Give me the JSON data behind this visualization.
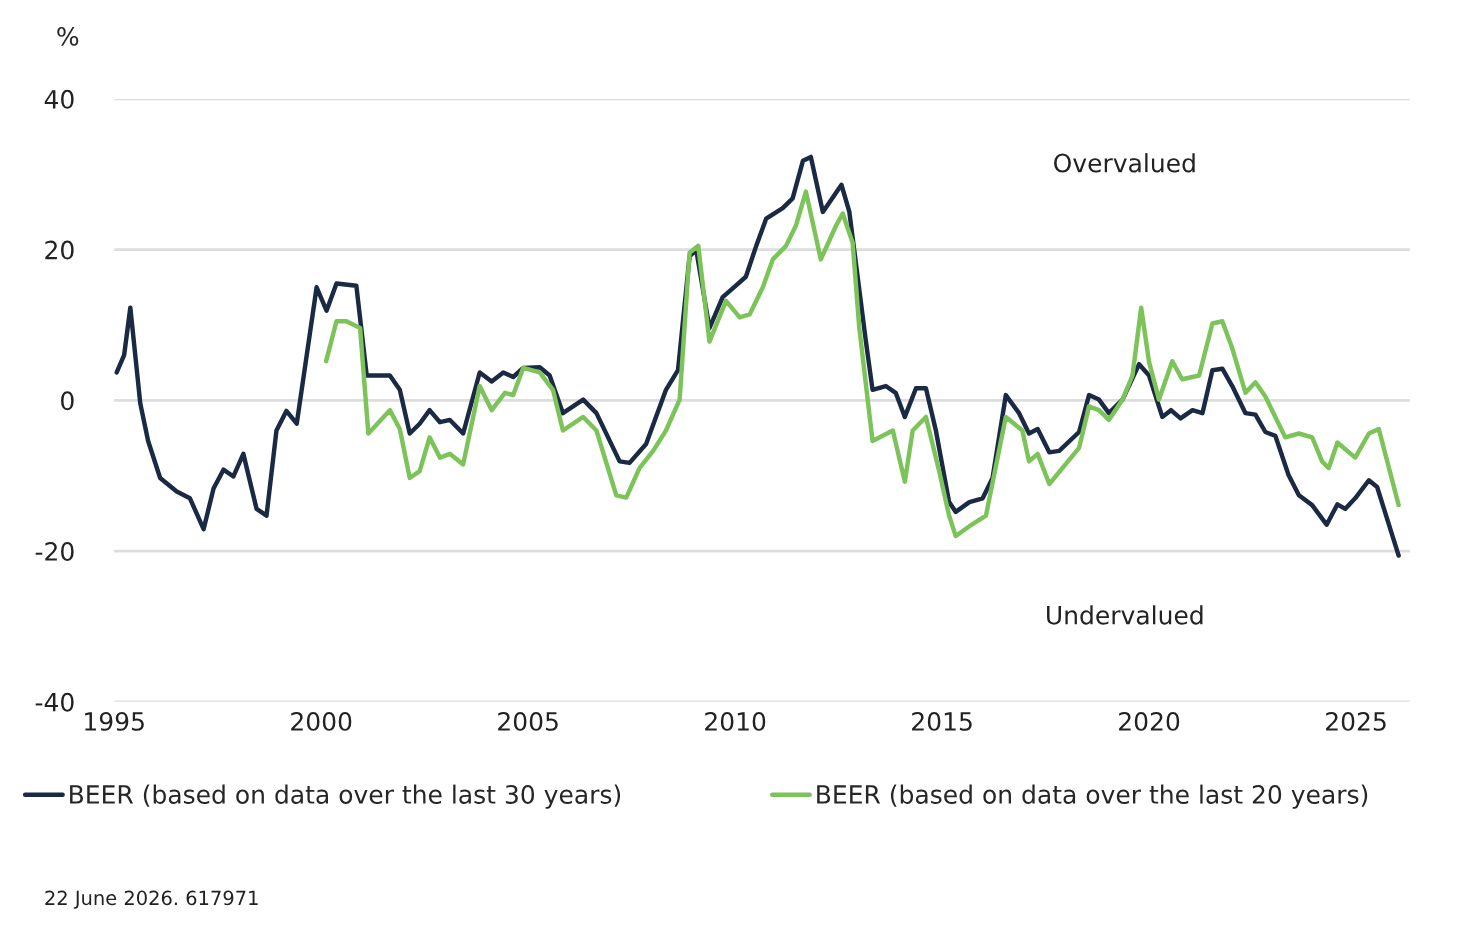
{
  "chart_data": {
    "type": "line",
    "ylabel": "%",
    "xlim": [
      1995,
      2026.3
    ],
    "xticks": [
      1995,
      2000,
      2005,
      2010,
      2015,
      2020,
      2025
    ],
    "ylim": [
      -40,
      40
    ],
    "yticks": [
      -40,
      -20,
      0,
      20,
      40
    ],
    "grid": "y",
    "legend": "bottom",
    "marker": "none",
    "line_style": "solid",
    "annotations": [
      "Overvalued",
      "Undervalued",
      "22 June 2026. 617971"
    ],
    "series": [
      {
        "name": "BEER (based on data over the last 30 years)",
        "color": "#1b2a44",
        "x": [
          1995.06,
          1995.24,
          1995.39,
          1995.63,
          1995.82,
          1996.11,
          1996.51,
          1996.83,
          1997.16,
          1997.4,
          1997.64,
          1997.88,
          1998.12,
          1998.44,
          1998.68,
          1998.92,
          1999.16,
          1999.41,
          1999.89,
          2000.13,
          2000.37,
          2000.85,
          2001.1,
          2001.66,
          2001.9,
          2002.14,
          2002.38,
          2002.62,
          2002.87,
          2003.11,
          2003.43,
          2003.83,
          2004.12,
          2004.4,
          2004.64,
          2004.88,
          2005.28,
          2005.52,
          2005.84,
          2006.33,
          2006.65,
          2007.21,
          2007.45,
          2007.85,
          2008.33,
          2008.62,
          2008.9,
          2009.06,
          2009.38,
          2009.7,
          2009.95,
          2010.26,
          2010.51,
          2010.75,
          2011.15,
          2011.39,
          2011.64,
          2011.83,
          2012.12,
          2012.57,
          2012.76,
          2013.16,
          2013.32,
          2013.64,
          2013.88,
          2014.1,
          2014.37,
          2014.61,
          2014.85,
          2015.17,
          2015.33,
          2015.66,
          2015.98,
          2016.22,
          2016.54,
          2016.86,
          2017.1,
          2017.31,
          2017.59,
          2017.83,
          2018.31,
          2018.55,
          2018.79,
          2019.03,
          2019.36,
          2019.76,
          2020.0,
          2020.32,
          2020.53,
          2020.76,
          2021.05,
          2021.29,
          2021.53,
          2021.77,
          2022.01,
          2022.33,
          2022.57,
          2022.81,
          2023.05,
          2023.37,
          2023.62,
          2023.94,
          2024.29,
          2024.55,
          2024.74,
          2024.98,
          2025.31,
          2025.51,
          2026.03
        ],
        "values": [
          3.7,
          6,
          12.3,
          -0.4,
          -5.4,
          -10.3,
          -12.1,
          -13,
          -17.1,
          -11.7,
          -9.2,
          -10.1,
          -7.1,
          -14.4,
          -15.3,
          -4,
          -1.4,
          -3.1,
          15,
          11.9,
          15.5,
          15.2,
          3.3,
          3.3,
          1.4,
          -4.4,
          -3.1,
          -1.3,
          -2.9,
          -2.6,
          -4.4,
          3.7,
          2.5,
          3.7,
          3.1,
          4.3,
          4.4,
          3.3,
          -1.7,
          0.1,
          -1.7,
          -8.1,
          -8.3,
          -5.8,
          1.4,
          4,
          19.1,
          20,
          9.6,
          13.7,
          14.9,
          16.4,
          20.5,
          24.1,
          25.5,
          26.8,
          31.8,
          32.3,
          25,
          28.6,
          25,
          7.8,
          1.4,
          1.9,
          1,
          -2.2,
          1.6,
          1.6,
          -4,
          -13.5,
          -14.8,
          -13.5,
          -13,
          -10.3,
          0.7,
          -1.7,
          -4.4,
          -3.8,
          -6.9,
          -6.7,
          -4.2,
          0.7,
          0.1,
          -1.7,
          0.1,
          4.8,
          3.3,
          -2.2,
          -1.3,
          -2.4,
          -1.3,
          -1.7,
          4,
          4.2,
          1.9,
          -1.7,
          -1.9,
          -4.2,
          -4.7,
          -9.9,
          -12.6,
          -13.9,
          -16.5,
          -13.8,
          -14.4,
          -13,
          -10.6,
          -11.5,
          -20.6
        ]
      },
      {
        "name": "BEER (based on data over the last 20 years)",
        "color": "#7cc35a",
        "x": [
          2000.12,
          2000.37,
          2000.61,
          2000.94,
          2001.14,
          2001.66,
          2001.9,
          2002.14,
          2002.38,
          2002.62,
          2002.87,
          2003.11,
          2003.43,
          2003.83,
          2004.12,
          2004.44,
          2004.64,
          2004.88,
          2005.28,
          2005.6,
          2005.84,
          2006.33,
          2006.65,
          2007.13,
          2007.37,
          2007.69,
          2008.02,
          2008.33,
          2008.66,
          2008.9,
          2009.11,
          2009.38,
          2009.78,
          2010.11,
          2010.35,
          2010.67,
          2010.91,
          2011.23,
          2011.47,
          2011.71,
          2012.07,
          2012.44,
          2012.6,
          2012.84,
          2013.0,
          2013.32,
          2013.81,
          2014.1,
          2014.29,
          2014.61,
          2014.93,
          2015.17,
          2015.33,
          2015.66,
          2016.06,
          2016.54,
          2016.94,
          2017.1,
          2017.31,
          2017.59,
          2018.31,
          2018.55,
          2018.79,
          2019.03,
          2019.36,
          2019.6,
          2019.81,
          2020.0,
          2020.24,
          2020.56,
          2020.8,
          2021.21,
          2021.53,
          2021.77,
          2022.01,
          2022.33,
          2022.57,
          2022.81,
          2023.29,
          2023.62,
          2023.94,
          2024.18,
          2024.34,
          2024.55,
          2024.98,
          2025.31,
          2025.55,
          2026.03
        ],
        "values": [
          5.2,
          10.5,
          10.5,
          9.6,
          -4.4,
          -1.3,
          -3.8,
          -10.3,
          -9.4,
          -4.9,
          -7.6,
          -7.1,
          -8.5,
          1.9,
          -1.3,
          1,
          0.7,
          4.3,
          3.7,
          1.4,
          -4,
          -2.2,
          -4,
          -12.6,
          -12.9,
          -9,
          -6.7,
          -4,
          0.1,
          19.6,
          20.5,
          7.8,
          13.2,
          11,
          11.4,
          15,
          18.7,
          20.5,
          23.2,
          27.7,
          18.7,
          23.2,
          24.8,
          20.9,
          9.6,
          -5.4,
          -4,
          -10.8,
          -4,
          -2.2,
          -9.4,
          -15.3,
          -18,
          -16.7,
          -15.3,
          -2.2,
          -4,
          -8.1,
          -7.1,
          -11.1,
          -6.3,
          -0.8,
          -1.3,
          -2.6,
          0.1,
          3.3,
          12.3,
          5.1,
          0.1,
          5.2,
          2.8,
          3.3,
          10.2,
          10.5,
          6.9,
          1,
          2.4,
          0.5,
          -4.9,
          -4.4,
          -4.9,
          -8.1,
          -9,
          -5.6,
          -7.6,
          -4.4,
          -3.8,
          -13.9
        ]
      }
    ]
  }
}
